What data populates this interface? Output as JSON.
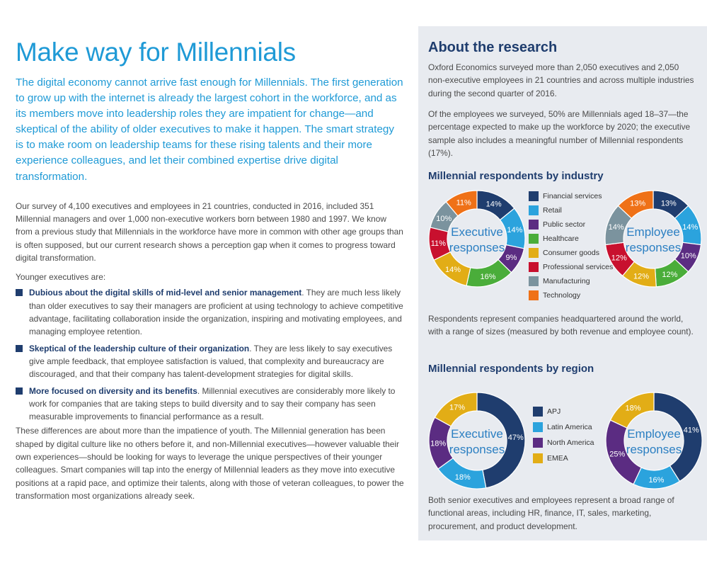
{
  "title": "Make way for Millennials",
  "lead": "The digital economy cannot arrive fast enough for Millennials. The first generation to grow up with the internet is already the largest cohort in the workforce, and as its members move into leadership roles they are impatient for change—and skeptical of the ability of older executives to make it happen. The smart strategy is to make room on leadership teams for these rising talents and their more experience colleagues, and let their combined expertise drive digital transformation.",
  "body_intro": "Our survey of 4,100 executives and employees in 21 countries, conducted in 2016, included 351 Millennial managers and over 1,000 non-executive workers born between 1980 and 1997. We know from a previous study that Millennials in the workforce have more in common with other age groups than is often supposed, but our current research shows a perception gap when it comes to progress toward digital transformation.",
  "younger_label": "Younger executives are:",
  "bullets": [
    {
      "bold": "Dubious about the digital skills of mid-level and senior management",
      "text": ". They are much less likely than older executives to say their managers are proficient at using technology to achieve competitive advantage, facilitating collaboration inside the organization, inspiring and motivating employees, and managing employee retention."
    },
    {
      "bold": "Skeptical of the leadership culture of their organization",
      "text": ". They are less likely to say executives give ample feedback, that employee satisfaction is valued, that complexity and bureaucracy are discouraged, and that their company has talent-development strategies for digital skills."
    },
    {
      "bold": "More focused on diversity and its benefits",
      "text": ". Millennial executives are considerably more likely to work for companies that are taking steps to build diversity and to say their company has seen measurable improvements to financial performance as a result."
    }
  ],
  "body_closing": "These differences are about more than the impatience of youth. The Millennial generation has been shaped by digital culture like no others before it, and non-Millennial executives—however valuable their own experiences—should be looking for ways to leverage the unique perspectives of their younger colleagues. Smart companies will tap into the energy of Millennial leaders as they move into executive positions at a rapid pace, and optimize their talents, along with those of veteran colleagues, to power the transformation most organizations already seek.",
  "sidebar": {
    "title": "About the research",
    "p1": "Oxford Economics surveyed more than 2,050 executives and 2,050 non-executive employees in 21 countries and across multiple industries during the second quarter of 2016.",
    "p2": "Of the employees we surveyed, 50% are Millennials aged 18–37—the percentage expected to make up the workforce by 2020; the executive sample also includes a meaningful number of Millennial respondents (17%).",
    "industry_heading": "Millennial respondents by industry",
    "p3": "Respondents represent companies headquartered around the world, with a range of sizes (measured by both revenue and employee count).",
    "region_heading": "Millennial respondents by region",
    "p4": "Both senior executives and employees represent a broad range of functional areas, including HR, finance, IT, sales, marketing, procurement, and product development."
  },
  "chart_data": [
    {
      "type": "pie",
      "group": "industry",
      "categories": [
        "Financial services",
        "Retail",
        "Public sector",
        "Healthcare",
        "Consumer goods",
        "Professional services",
        "Manufacturing",
        "Technology"
      ],
      "colors": [
        "#1f3d6e",
        "#2ba3dd",
        "#5b2c82",
        "#4aad3a",
        "#e2ad16",
        "#c8102e",
        "#7b939e",
        "#ef7117"
      ],
      "series": [
        {
          "center": [
            "Executive",
            "responses"
          ],
          "values": [
            14,
            14,
            9,
            16,
            14,
            11,
            10,
            11
          ],
          "labels": [
            "14%",
            "14%",
            "9%",
            "16%",
            "14%",
            "11%",
            "10%",
            "11%"
          ]
        },
        {
          "center": [
            "Employee",
            "responses"
          ],
          "values": [
            13,
            14,
            10,
            12,
            12,
            12,
            14,
            13
          ],
          "labels": [
            "13%",
            "14%",
            "10%",
            "12%",
            "12%",
            "12%",
            "14%",
            "13%"
          ]
        }
      ]
    },
    {
      "type": "pie",
      "group": "region",
      "categories": [
        "APJ",
        "Latin America",
        "North America",
        "EMEA"
      ],
      "colors": [
        "#1f3d6e",
        "#2ba3dd",
        "#5b2c82",
        "#e2ad16"
      ],
      "series": [
        {
          "center": [
            "Executive",
            "responses"
          ],
          "values": [
            47,
            18,
            18,
            17
          ],
          "labels": [
            "47%",
            "18%",
            "18%",
            "17%"
          ]
        },
        {
          "center": [
            "Employee",
            "responses"
          ],
          "values": [
            41,
            16,
            25,
            18
          ],
          "labels": [
            "41%",
            "16%",
            "25%",
            "18%"
          ]
        }
      ]
    }
  ]
}
